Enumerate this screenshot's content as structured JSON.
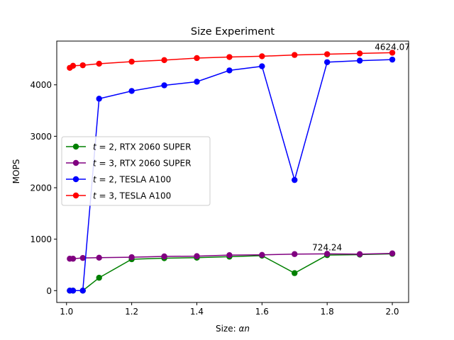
{
  "chart_data": {
    "type": "line",
    "title": "Size Experiment",
    "xlabel_prefix": "Size: ",
    "xlabel_var": "αn",
    "ylabel": "MOPS",
    "xlim": [
      0.97,
      2.05
    ],
    "ylim": [
      -230,
      4850
    ],
    "xticks": [
      1.0,
      1.2,
      1.4,
      1.6,
      1.8,
      2.0
    ],
    "xtick_labels": [
      "1.0",
      "1.2",
      "1.4",
      "1.6",
      "1.8",
      "2.0"
    ],
    "yticks": [
      0,
      1000,
      2000,
      3000,
      4000
    ],
    "ytick_labels": [
      "0",
      "1000",
      "2000",
      "3000",
      "4000"
    ],
    "grid": false,
    "legend_position": "center-left",
    "x": [
      1.01,
      1.02,
      1.05,
      1.1,
      1.2,
      1.3,
      1.4,
      1.5,
      1.6,
      1.7,
      1.8,
      1.9,
      2.0
    ],
    "series": [
      {
        "name": "t = 2, RTX 2060 SUPER",
        "legend_var": "t",
        "legend_rest": " = 2, RTX 2060 SUPER",
        "color": "#008000",
        "values": [
          0,
          0,
          0,
          250,
          610,
          630,
          640,
          660,
          680,
          340,
          690,
          700,
          715
        ]
      },
      {
        "name": "t = 3, RTX 2060 SUPER",
        "legend_var": "t",
        "legend_rest": " = 3, RTX 2060 SUPER",
        "color": "#800080",
        "values": [
          620,
          620,
          635,
          640,
          650,
          665,
          670,
          690,
          695,
          710,
          715,
          710,
          724.24
        ]
      },
      {
        "name": "t = 2, TESLA A100",
        "legend_var": "t",
        "legend_rest": " = 2, TESLA A100",
        "color": "#0000ff",
        "values": [
          0,
          0,
          0,
          3730,
          3880,
          3990,
          4060,
          4280,
          4360,
          2150,
          4440,
          4470,
          4490
        ]
      },
      {
        "name": "t = 3, TESLA A100",
        "legend_var": "t",
        "legend_rest": " = 3, TESLA A100",
        "color": "#ff0000",
        "values": [
          4330,
          4370,
          4380,
          4410,
          4450,
          4480,
          4520,
          4540,
          4555,
          4580,
          4595,
          4610,
          4624.07
        ]
      }
    ],
    "annotations": [
      {
        "text": "4624.07",
        "x": 2.0,
        "y": 4624.07
      },
      {
        "text": "724.24",
        "x": 1.8,
        "y": 724.24
      }
    ]
  }
}
